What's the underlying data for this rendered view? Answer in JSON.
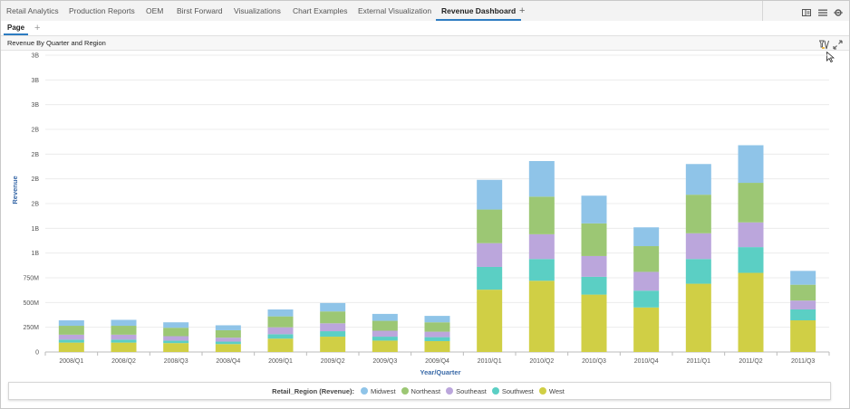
{
  "tabs": [
    {
      "label": "Retail Analytics",
      "active": false
    },
    {
      "label": "Production Reports",
      "active": false
    },
    {
      "label": "OEM",
      "active": false
    },
    {
      "label": "Birst Forward",
      "active": false
    },
    {
      "label": "Visualizations",
      "active": false
    },
    {
      "label": "Chart Examples",
      "active": false
    },
    {
      "label": "External Visualization",
      "active": false
    },
    {
      "label": "Revenue Dashboard",
      "active": true
    }
  ],
  "add_tab_label": "+",
  "toolbar_icons": [
    "layout-icon",
    "menu-icon",
    "settings-icon"
  ],
  "page": {
    "tab_label": "Page",
    "add_label": "+"
  },
  "panel": {
    "title": "Revenue By Quarter and Region",
    "icons": [
      "filter-icon",
      "expand-icon"
    ]
  },
  "legend": {
    "title": "Retail_Region (Revenue):"
  },
  "chart_data": {
    "type": "bar",
    "stacked": true,
    "xlabel": "Year/Quarter",
    "ylabel": "Revenue",
    "ylim": [
      0,
      3000000000
    ],
    "y_ticks": [
      {
        "value": 0,
        "label": "0"
      },
      {
        "value": 250000000,
        "label": "250M"
      },
      {
        "value": 500000000,
        "label": "500M"
      },
      {
        "value": 750000000,
        "label": "750M"
      },
      {
        "value": 1000000000,
        "label": "1B"
      },
      {
        "value": 1250000000,
        "label": "1B"
      },
      {
        "value": 1500000000,
        "label": "2B"
      },
      {
        "value": 1750000000,
        "label": "2B"
      },
      {
        "value": 2000000000,
        "label": "2B"
      },
      {
        "value": 2250000000,
        "label": "2B"
      },
      {
        "value": 2500000000,
        "label": "3B"
      },
      {
        "value": 2750000000,
        "label": "3B"
      },
      {
        "value": 3000000000,
        "label": "3B"
      }
    ],
    "grid": true,
    "legend_position": "bottom",
    "categories": [
      "2008/Q1",
      "2008/Q2",
      "2008/Q3",
      "2008/Q4",
      "2009/Q1",
      "2009/Q2",
      "2009/Q3",
      "2009/Q4",
      "2010/Q1",
      "2010/Q2",
      "2010/Q3",
      "2010/Q4",
      "2011/Q1",
      "2011/Q2",
      "2011/Q3"
    ],
    "series": [
      {
        "name": "West",
        "color": "#d0cf45",
        "values": [
          95000000,
          95000000,
          90000000,
          80000000,
          135000000,
          155000000,
          115000000,
          110000000,
          630000000,
          720000000,
          580000000,
          450000000,
          690000000,
          800000000,
          320000000
        ]
      },
      {
        "name": "Southwest",
        "color": "#5bcfc4",
        "values": [
          30000000,
          30000000,
          25000000,
          25000000,
          45000000,
          55000000,
          40000000,
          40000000,
          230000000,
          220000000,
          180000000,
          170000000,
          250000000,
          260000000,
          110000000
        ]
      },
      {
        "name": "Southeast",
        "color": "#bba6dc",
        "values": [
          50000000,
          50000000,
          45000000,
          40000000,
          70000000,
          80000000,
          60000000,
          55000000,
          240000000,
          250000000,
          210000000,
          190000000,
          260000000,
          250000000,
          90000000
        ]
      },
      {
        "name": "Northeast",
        "color": "#9cc774",
        "values": [
          90000000,
          90000000,
          85000000,
          75000000,
          110000000,
          120000000,
          100000000,
          95000000,
          340000000,
          380000000,
          330000000,
          260000000,
          390000000,
          400000000,
          160000000
        ]
      },
      {
        "name": "Midwest",
        "color": "#8fc4e8",
        "values": [
          55000000,
          60000000,
          55000000,
          50000000,
          70000000,
          85000000,
          70000000,
          65000000,
          300000000,
          360000000,
          280000000,
          190000000,
          310000000,
          380000000,
          140000000
        ]
      }
    ],
    "legend_order": [
      "Midwest",
      "Northeast",
      "Southeast",
      "Southwest",
      "West"
    ]
  }
}
